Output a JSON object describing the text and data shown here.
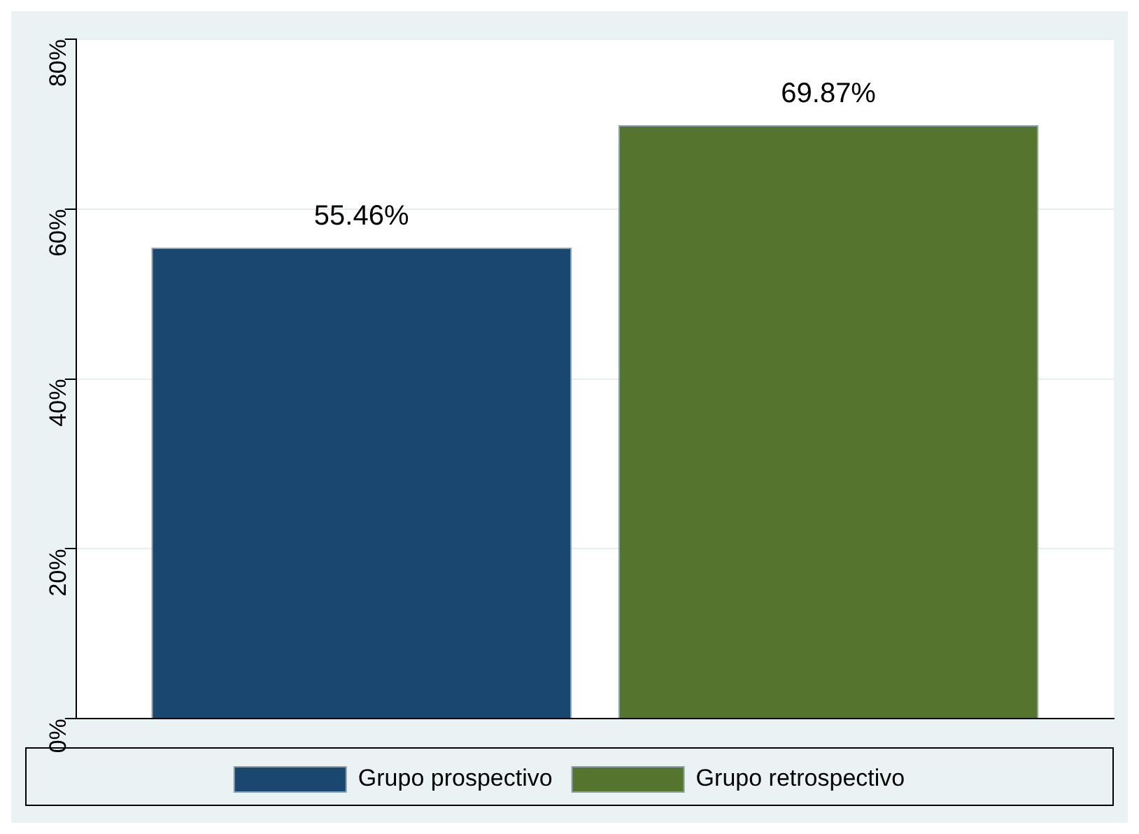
{
  "chart_data": {
    "type": "bar",
    "categories": [
      null
    ],
    "series": [
      {
        "name": "Grupo prospectivo",
        "color": "#1a476f",
        "values": [
          55.46
        ],
        "value_labels": [
          "55.46%"
        ]
      },
      {
        "name": "Grupo retrospectivo",
        "color": "#55752f",
        "values": [
          69.87
        ],
        "value_labels": [
          "69.87%"
        ]
      }
    ],
    "ylim": [
      0,
      80
    ],
    "yticks": [
      {
        "value": 0,
        "label": "0%"
      },
      {
        "value": 20,
        "label": "20%"
      },
      {
        "value": 40,
        "label": "40%"
      },
      {
        "value": 60,
        "label": "60%"
      },
      {
        "value": 80,
        "label": "80%"
      }
    ],
    "grid": "y",
    "legend": "bottom"
  }
}
